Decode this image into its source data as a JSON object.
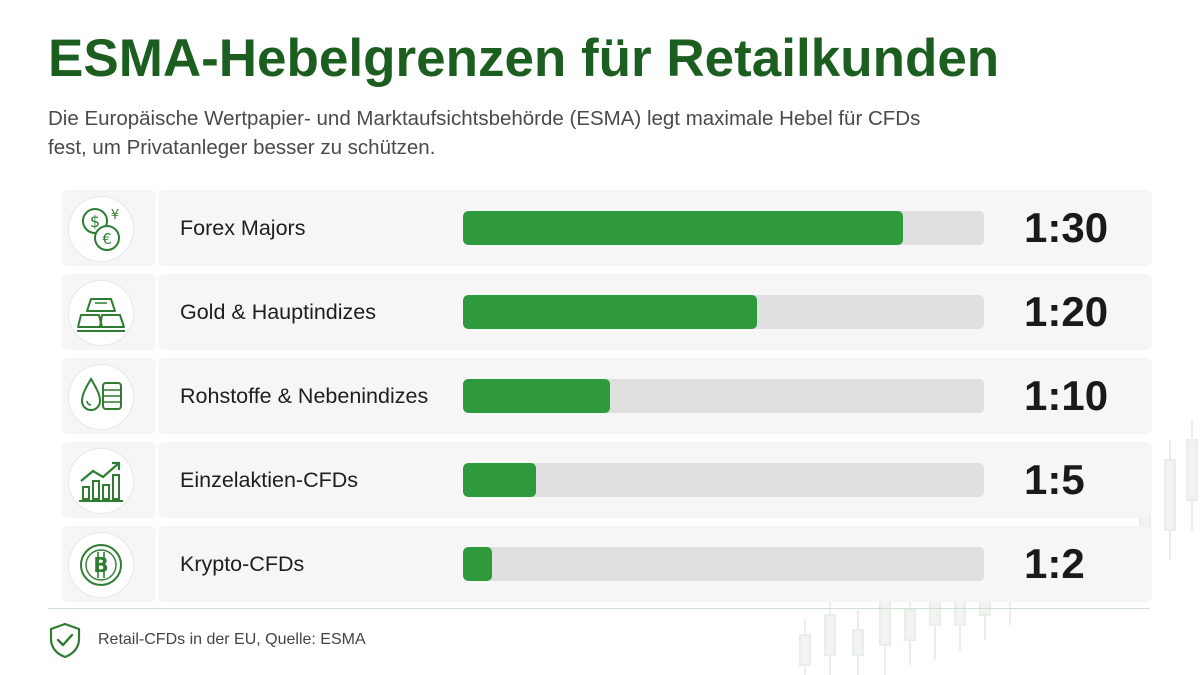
{
  "header": {
    "title": "ESMA-Hebelgrenzen für Retailkunden",
    "subtitle": "Die Europäische Wertpapier- und Marktaufsichtsbehörde (ESMA) legt maximale Hebel für CFDs fest, um Privatanleger besser zu schützen."
  },
  "chart_data": {
    "type": "bar",
    "orientation": "horizontal",
    "categories": [
      "Forex Majors",
      "Gold & Hauptindizes",
      "Rohstoffe & Nebenindizes",
      "Einzelaktien-CFDs",
      "Krypto-CFDs"
    ],
    "value_labels": [
      "1:30",
      "1:20",
      "1:10",
      "1:5",
      "1:2"
    ],
    "values": [
      30,
      20,
      10,
      5,
      2
    ],
    "icons": [
      "currency-coins-icon",
      "gold-bars-icon",
      "oil-barrel-icon",
      "rising-chart-icon",
      "bitcoin-icon"
    ],
    "colors": {
      "bar": "#2e9a3c",
      "track": "#dfe0df",
      "title": "#1b5e20"
    },
    "title": "",
    "xlabel": "",
    "ylabel": "",
    "grid": false
  },
  "footer": {
    "icon": "shield-check-icon",
    "source": "Retail-CFDs in der EU, Quelle: ESMA"
  }
}
